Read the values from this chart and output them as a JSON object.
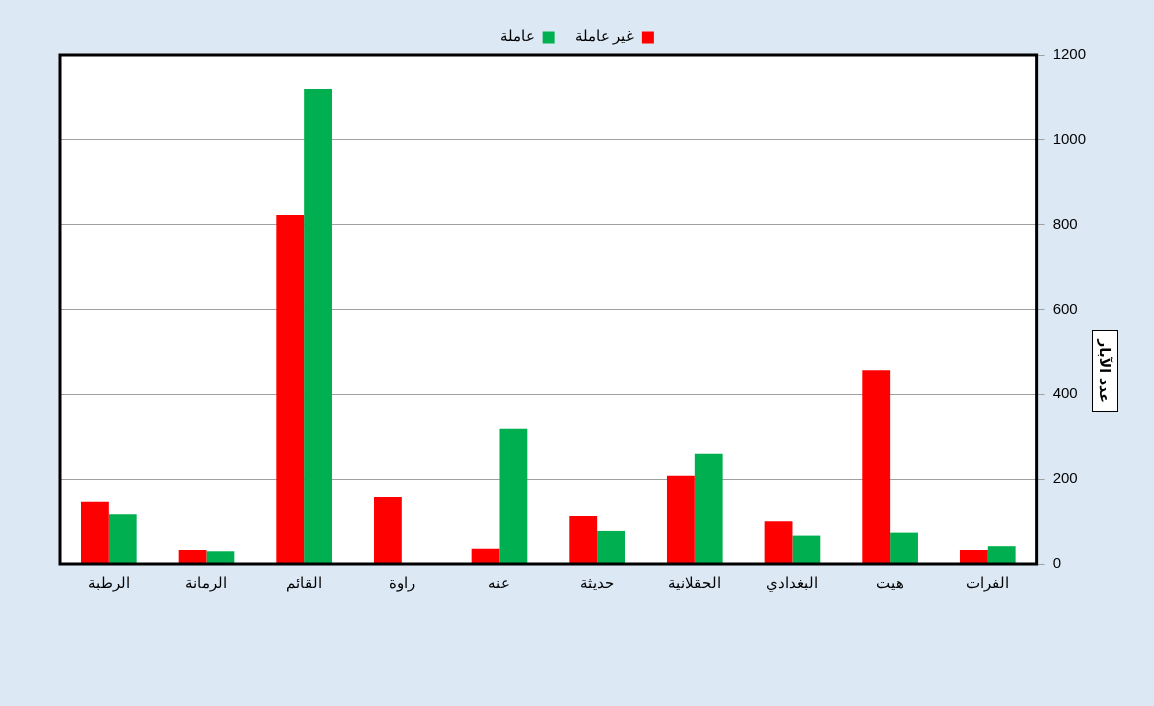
{
  "chart_data": {
    "type": "bar",
    "ylabel": "عدد الآبار",
    "categories": [
      "الرطبة",
      "الرمانة",
      "القائم",
      "راوة",
      "عنه",
      "حديثة",
      "الحقلانية",
      "البغدادي",
      "هيت",
      "الفرات"
    ],
    "series": [
      {
        "name": "غير عاملة",
        "color": "#ff0000",
        "values": [
          147,
          33,
          823,
          158,
          36,
          113,
          208,
          101,
          457,
          33
        ]
      },
      {
        "name": "عاملة",
        "color": "#00b050",
        "values": [
          117,
          30,
          1120,
          0,
          319,
          78,
          260,
          67,
          74,
          42
        ]
      }
    ],
    "ylim": [
      0,
      1200
    ],
    "yticks": [
      0,
      200,
      400,
      600,
      800,
      1000,
      1200
    ],
    "grid": "y",
    "legend": "top"
  }
}
